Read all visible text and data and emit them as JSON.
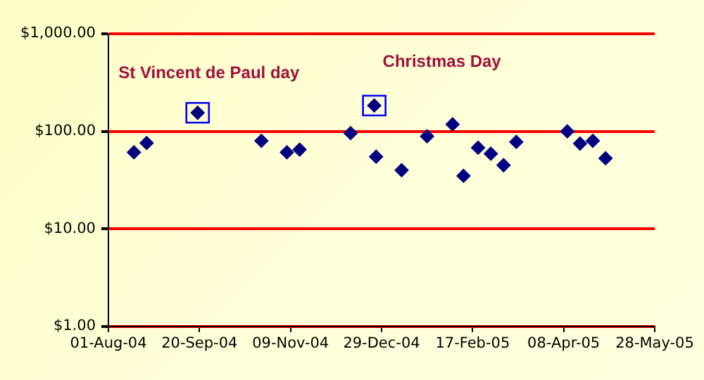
{
  "chart_data": {
    "type": "scatter",
    "log": "y",
    "grid": "y",
    "marker": "diamond",
    "x": [
      "2004-08-15",
      "2004-08-22",
      "2004-09-19",
      "2004-10-24",
      "2004-11-07",
      "2004-11-14",
      "2004-12-12",
      "2004-12-25",
      "2004-12-26",
      "2005-01-09",
      "2005-01-23",
      "2005-02-06",
      "2005-02-12",
      "2005-02-20",
      "2005-02-27",
      "2005-03-06",
      "2005-03-13",
      "2005-04-10",
      "2005-04-17",
      "2005-04-24",
      "2005-05-01"
    ],
    "series": [
      {
        "color": "#000080",
        "values": [
          61,
          76,
          155,
          80,
          61,
          65,
          96,
          184,
          55,
          40,
          89,
          118,
          35,
          68,
          59,
          45,
          78,
          100,
          75,
          80,
          53
        ]
      }
    ],
    "xlim": [
      "2004-08-01",
      "2005-05-28"
    ],
    "xticks": [
      {
        "value": "2004-08-01",
        "label": "01-Aug-04"
      },
      {
        "value": "2004-09-20",
        "label": "20-Sep-04"
      },
      {
        "value": "2004-11-09",
        "label": "09-Nov-04"
      },
      {
        "value": "2004-12-29",
        "label": "29-Dec-04"
      },
      {
        "value": "2005-02-17",
        "label": "17-Feb-05"
      },
      {
        "value": "2005-04-08",
        "label": "08-Apr-05"
      },
      {
        "value": "2005-05-28",
        "label": "28-May-05"
      }
    ],
    "ylim": [
      1,
      1000
    ],
    "yticks": [
      {
        "value": 1,
        "label": "$1.00"
      },
      {
        "value": 10,
        "label": "$10.00"
      },
      {
        "value": 100,
        "label": "$100.00"
      },
      {
        "value": 1000,
        "label": "$1,000.00"
      }
    ],
    "annotations": [
      {
        "text": "St Vincent de Paul day",
        "x": "2004-09-19",
        "y": 155
      },
      {
        "text": "Christmas Day",
        "x": "2004-12-25",
        "y": 184
      }
    ]
  }
}
